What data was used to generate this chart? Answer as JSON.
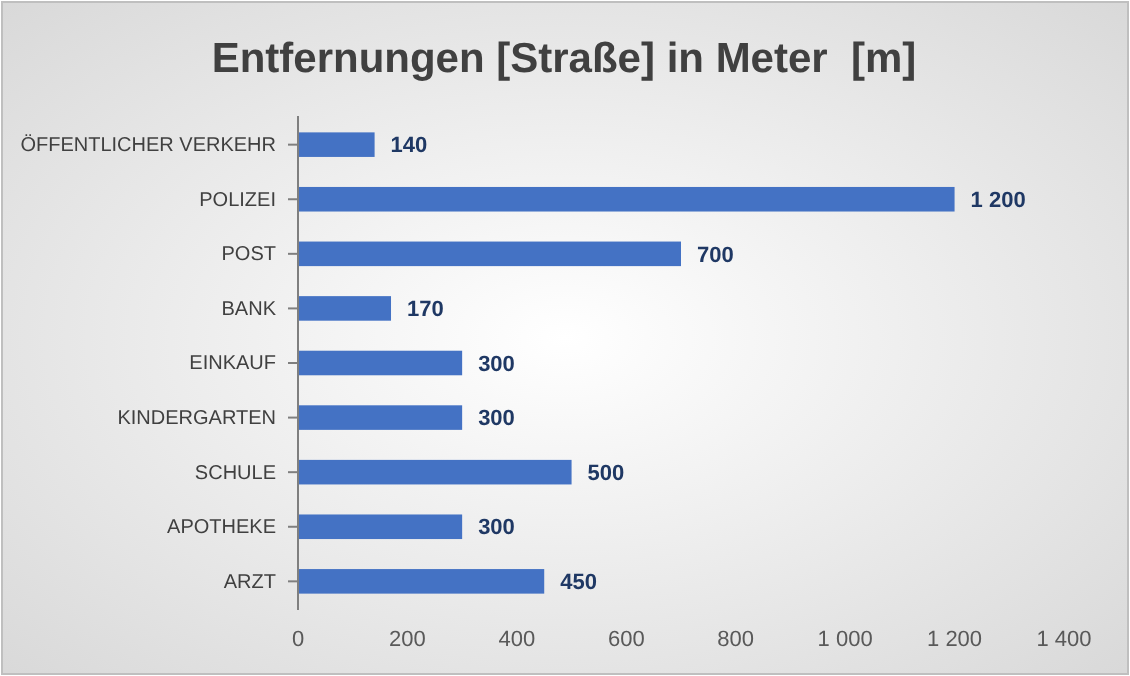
{
  "chart_data": {
    "type": "bar",
    "orientation": "horizontal",
    "title": "Entfernungen [Straße] in Meter  [m]",
    "categories": [
      "ÖFFENTLICHER VERKEHR",
      "POLIZEI",
      "POST",
      "BANK",
      "EINKAUF",
      "KINDERGARTEN",
      "SCHULE",
      "APOTHEKE",
      "ARZT"
    ],
    "values": [
      140,
      1200,
      700,
      170,
      300,
      300,
      500,
      300,
      450
    ],
    "value_labels": [
      "140",
      "1 200",
      "700",
      "170",
      "300",
      "300",
      "500",
      "300",
      "450"
    ],
    "color": "#4472c4",
    "xlim": [
      0,
      1400
    ],
    "xticks": [
      0,
      200,
      400,
      600,
      800,
      {
        "value": 1000,
        "label": "1 000"
      },
      {
        "value": 1200,
        "label": "1 200"
      },
      {
        "value": 1400,
        "label": "1 400"
      }
    ],
    "grid": false
  }
}
